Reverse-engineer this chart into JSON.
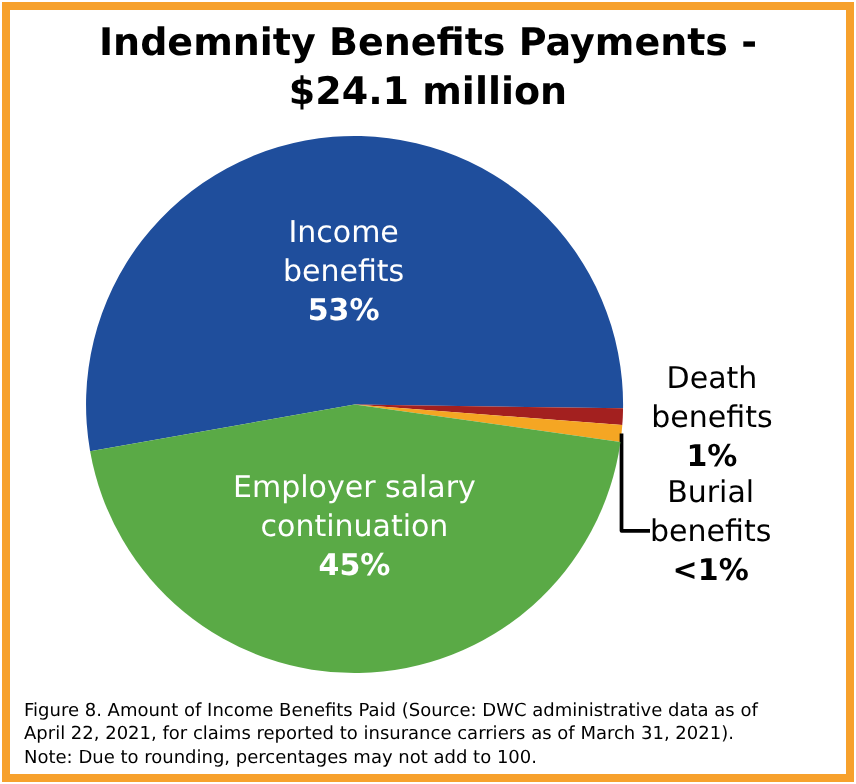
{
  "chart_data": {
    "type": "pie",
    "title": "Indemnity Benefits Payments -\n$24.1 million",
    "categories": [
      "Income\nbenefits",
      "Death\nbenefits",
      "Burial\nbenefits",
      "Employer salary\ncontinuation"
    ],
    "values": [
      53,
      1,
      1,
      45
    ],
    "value_labels": [
      "53%",
      "1%",
      "<1%",
      "45%"
    ],
    "colors": [
      "#1f4e9c",
      "#a3201f",
      "#f5a623",
      "#5aaa46"
    ],
    "annotations": [
      "Figure 8. Amount of Income Benefits Paid (Source: DWC administrative data as of\nApril 22, 2021, for claims reported to insurance carriers as of March 31, 2021).\nNote: Due to rounding, percentages may not add to 100."
    ]
  }
}
